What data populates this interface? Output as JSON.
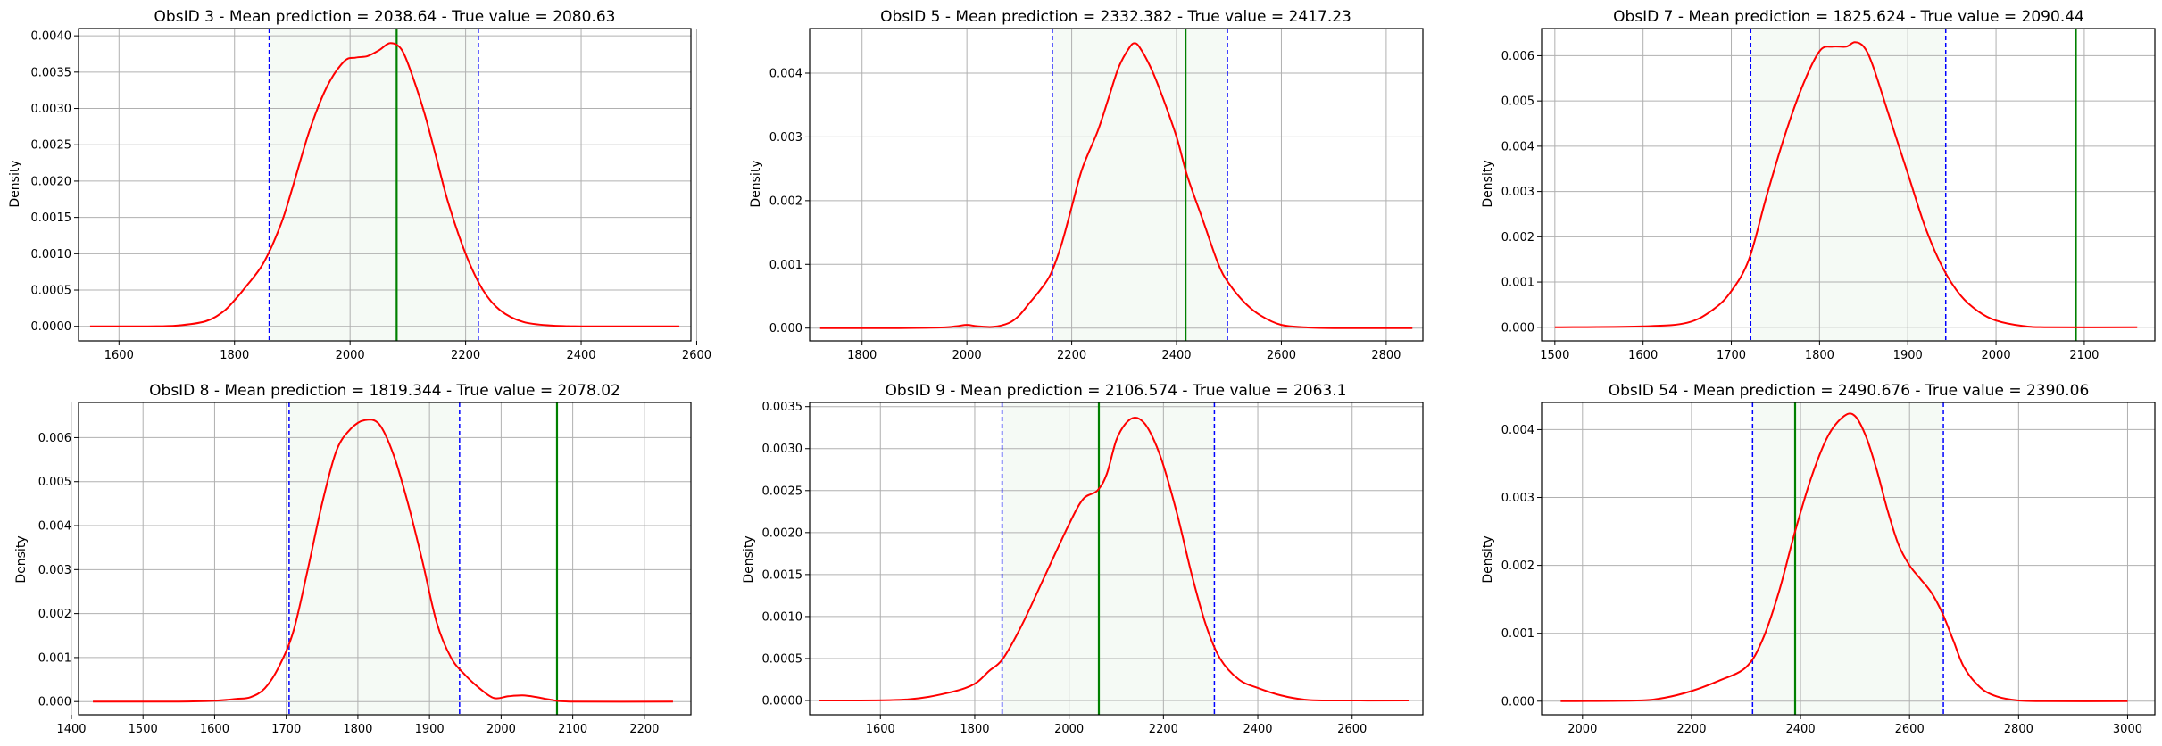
{
  "figure": {
    "background": "#ffffff"
  },
  "style": {
    "curve_color": "#ff0000",
    "interval_color": "#0000ff",
    "true_value_color": "#008000",
    "band_color": "#008000"
  },
  "chart_data": [
    {
      "type": "line",
      "title": "ObsID 3 - Mean prediction = 2038.64 - True value = 2080.63",
      "ylabel": "Density",
      "xlim": [
        1530,
        2590
      ],
      "ylim": [
        -0.0002,
        0.0041
      ],
      "xticks": [
        1600,
        1800,
        2000,
        2200,
        2400,
        2600
      ],
      "yticks": [
        "0.0000",
        "0.0005",
        "0.0010",
        "0.0015",
        "0.0020",
        "0.0025",
        "0.0030",
        "0.0035",
        "0.0040"
      ],
      "interval": [
        1860,
        2222
      ],
      "true_value": 2080.63,
      "series": [
        {
          "x": [
            1550,
            1650,
            1700,
            1750,
            1780,
            1800,
            1820,
            1850,
            1880,
            1900,
            1930,
            1960,
            1990,
            2010,
            2030,
            2050,
            2070,
            2090,
            2110,
            2130,
            2150,
            2170,
            2200,
            2230,
            2260,
            2300,
            2350,
            2400,
            2450,
            2500,
            2570
          ],
          "y": [
            0,
            0,
            1e-05,
            7e-05,
            0.0002,
            0.00036,
            0.00055,
            0.00087,
            0.0014,
            0.0019,
            0.0027,
            0.0033,
            0.00365,
            0.0037,
            0.00372,
            0.0038,
            0.0039,
            0.0038,
            0.0034,
            0.0029,
            0.0023,
            0.0017,
            0.001,
            0.0005,
            0.00022,
            6e-05,
            1e-05,
            0,
            0,
            0,
            0
          ]
        }
      ]
    },
    {
      "type": "line",
      "title": "ObsID 5 - Mean prediction = 2332.382 - True value = 2417.23",
      "ylabel": "Density",
      "xlim": [
        1700,
        2870
      ],
      "ylim": [
        -0.0002,
        0.0047
      ],
      "xticks": [
        1800,
        2000,
        2200,
        2400,
        2600,
        2800
      ],
      "yticks": [
        "0.000",
        "0.001",
        "0.002",
        "0.003",
        "0.004"
      ],
      "interval": [
        2163,
        2497
      ],
      "true_value": 2417.23,
      "series": [
        {
          "x": [
            1720,
            1850,
            1950,
            1980,
            2000,
            2020,
            2050,
            2080,
            2100,
            2120,
            2140,
            2160,
            2180,
            2200,
            2220,
            2250,
            2270,
            2290,
            2310,
            2320,
            2330,
            2350,
            2370,
            2400,
            2420,
            2450,
            2480,
            2500,
            2530,
            2560,
            2600,
            2650,
            2700,
            2850
          ],
          "y": [
            0,
            0,
            1e-05,
            3e-05,
            5e-05,
            3e-05,
            2e-05,
            8e-05,
            0.0002,
            0.0004,
            0.0006,
            0.00085,
            0.0013,
            0.0019,
            0.0025,
            0.0031,
            0.0036,
            0.0041,
            0.0044,
            0.00447,
            0.0044,
            0.0041,
            0.0037,
            0.003,
            0.0024,
            0.0017,
            0.001,
            0.0007,
            0.0004,
            0.0002,
            5e-05,
            1e-05,
            0,
            0
          ]
        }
      ]
    },
    {
      "type": "line",
      "title": "ObsID 7 - Mean prediction = 1825.624 - True value = 2090.44",
      "ylabel": "Density",
      "xlim": [
        1485,
        2180
      ],
      "ylim": [
        -0.0003,
        0.0066
      ],
      "xticks": [
        1500,
        1600,
        1700,
        1800,
        1900,
        2000,
        2100
      ],
      "yticks": [
        "0.000",
        "0.001",
        "0.002",
        "0.003",
        "0.004",
        "0.005",
        "0.006"
      ],
      "interval": [
        1722,
        1943
      ],
      "true_value": 2090.44,
      "series": [
        {
          "x": [
            1500,
            1600,
            1650,
            1680,
            1700,
            1720,
            1740,
            1760,
            1780,
            1800,
            1815,
            1830,
            1840,
            1850,
            1860,
            1880,
            1900,
            1920,
            1940,
            1960,
            1980,
            2000,
            2030,
            2060,
            2160
          ],
          "y": [
            0,
            2e-05,
            0.0001,
            0.0004,
            0.0008,
            0.0015,
            0.0029,
            0.0042,
            0.0053,
            0.0061,
            0.0062,
            0.0062,
            0.0063,
            0.0062,
            0.0058,
            0.0046,
            0.0034,
            0.0022,
            0.0013,
            0.0007,
            0.00035,
            0.00015,
            3e-05,
            0,
            0
          ]
        }
      ]
    },
    {
      "type": "line",
      "title": "ObsID 8 - Mean prediction = 1819.344 - True value = 2078.02",
      "ylabel": "Density",
      "xlim": [
        1410,
        2265
      ],
      "ylim": [
        -0.0003,
        0.0068
      ],
      "xticks": [
        1400,
        1500,
        1600,
        1700,
        1800,
        1900,
        2000,
        2100,
        2200
      ],
      "yticks": [
        "0.000",
        "0.001",
        "0.002",
        "0.003",
        "0.004",
        "0.005",
        "0.006"
      ],
      "interval": [
        1704,
        1942
      ],
      "true_value": 2078.02,
      "series": [
        {
          "x": [
            1430,
            1550,
            1600,
            1630,
            1650,
            1670,
            1690,
            1710,
            1730,
            1750,
            1770,
            1790,
            1810,
            1830,
            1850,
            1870,
            1890,
            1910,
            1930,
            1950,
            1970,
            1990,
            2010,
            2030,
            2050,
            2070,
            2100,
            2240
          ],
          "y": [
            0,
            0,
            2e-05,
            6e-05,
            0.0001,
            0.0003,
            0.0008,
            0.0016,
            0.003,
            0.0045,
            0.0057,
            0.0062,
            0.0064,
            0.0063,
            0.0056,
            0.0045,
            0.0032,
            0.0018,
            0.001,
            0.0006,
            0.0003,
            8e-05,
            0.00012,
            0.00014,
            0.0001,
            4e-05,
            0,
            0
          ]
        }
      ]
    },
    {
      "type": "line",
      "title": "ObsID 9 - Mean prediction = 2106.574 - True value = 2063.1",
      "ylabel": "Density",
      "xlim": [
        1450,
        2750
      ],
      "ylim": [
        -0.00017,
        0.00355
      ],
      "xticks": [
        1600,
        1800,
        2000,
        2200,
        2400,
        2600
      ],
      "yticks": [
        "0.0000",
        "0.0005",
        "0.0010",
        "0.0015",
        "0.0020",
        "0.0025",
        "0.0030",
        "0.0035"
      ],
      "interval": [
        1858,
        2308
      ],
      "true_value": 2063.1,
      "series": [
        {
          "x": [
            1470,
            1650,
            1750,
            1800,
            1830,
            1860,
            1900,
            1950,
            2000,
            2030,
            2060,
            2080,
            2100,
            2120,
            2140,
            2160,
            2180,
            2200,
            2230,
            2260,
            2290,
            2320,
            2360,
            2400,
            2450,
            2500,
            2550,
            2720
          ],
          "y": [
            0,
            1e-05,
            0.0001,
            0.0002,
            0.00035,
            0.0005,
            0.0009,
            0.0015,
            0.0021,
            0.0024,
            0.0025,
            0.0027,
            0.0031,
            0.0033,
            0.00337,
            0.0033,
            0.0031,
            0.0028,
            0.0022,
            0.0015,
            0.0009,
            0.0005,
            0.00025,
            0.00015,
            6e-05,
            1e-05,
            0,
            0
          ]
        }
      ]
    },
    {
      "type": "line",
      "title": "ObsID 54 - Mean prediction = 2490.676 - True value = 2390.06",
      "ylabel": "Density",
      "xlim": [
        1925,
        3050
      ],
      "ylim": [
        -0.0002,
        0.0044
      ],
      "xticks": [
        2000,
        2200,
        2400,
        2600,
        2800,
        3000
      ],
      "yticks": [
        "0.000",
        "0.001",
        "0.002",
        "0.003",
        "0.004"
      ],
      "interval": [
        2312,
        2662
      ],
      "true_value": 2390.06,
      "series": [
        {
          "x": [
            1960,
            2100,
            2150,
            2200,
            2250,
            2300,
            2330,
            2360,
            2390,
            2420,
            2450,
            2480,
            2500,
            2520,
            2540,
            2560,
            2580,
            2600,
            2620,
            2640,
            2660,
            2680,
            2700,
            2730,
            2760,
            2800,
            2850,
            3000
          ],
          "y": [
            0,
            1e-05,
            5e-05,
            0.00015,
            0.0003,
            0.0005,
            0.0009,
            0.0016,
            0.0025,
            0.0033,
            0.0039,
            0.0042,
            0.0042,
            0.0039,
            0.0034,
            0.0028,
            0.0023,
            0.002,
            0.0018,
            0.0016,
            0.0013,
            0.0009,
            0.0005,
            0.0002,
            7e-05,
            1e-05,
            0,
            0
          ]
        }
      ]
    }
  ]
}
